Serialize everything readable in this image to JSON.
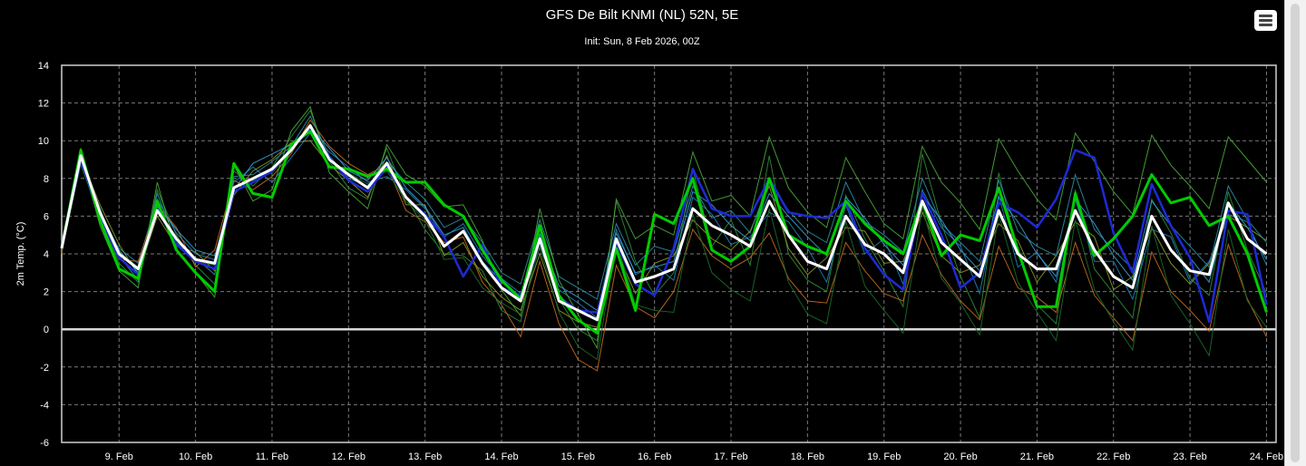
{
  "chart_data": {
    "type": "line",
    "title": "GFS De Bilt KNMI (NL) 52N, 5E",
    "subtitle": "Init: Sun, 8 Feb 2026, 00Z",
    "ylabel": "2m Temp. (°C)",
    "xlabel": "",
    "ylim": [
      -6,
      14
    ],
    "yticks": [
      14,
      12,
      10,
      8,
      6,
      4,
      2,
      0,
      -2,
      -4,
      -6
    ],
    "xlim": [
      8.25,
      24.125
    ],
    "xticks": [
      {
        "day": 9,
        "label": "9. Feb"
      },
      {
        "day": 10,
        "label": "10. Feb"
      },
      {
        "day": 11,
        "label": "11. Feb"
      },
      {
        "day": 12,
        "label": "12. Feb"
      },
      {
        "day": 13,
        "label": "13. Feb"
      },
      {
        "day": 14,
        "label": "14. Feb"
      },
      {
        "day": 15,
        "label": "15. Feb"
      },
      {
        "day": 16,
        "label": "16. Feb"
      },
      {
        "day": 17,
        "label": "17. Feb"
      },
      {
        "day": 18,
        "label": "18. Feb"
      },
      {
        "day": 19,
        "label": "19. Feb"
      },
      {
        "day": 20,
        "label": "20. Feb"
      },
      {
        "day": 21,
        "label": "21. Feb"
      },
      {
        "day": 22,
        "label": "22. Feb"
      },
      {
        "day": 23,
        "label": "23. Feb"
      },
      {
        "day": 24,
        "label": "24. Feb"
      }
    ],
    "grid": true,
    "zero_line": true,
    "x_step_hours": 6,
    "x_start_day": 8.25,
    "main_series": [
      {
        "role": "ensemble-mean",
        "color": "#ffffff",
        "width": 3,
        "values": [
          4.3,
          9.2,
          6.2,
          4.0,
          3.2,
          6.3,
          4.8,
          3.7,
          3.5,
          7.5,
          8.0,
          8.5,
          9.5,
          10.8,
          9.0,
          8.2,
          7.5,
          8.8,
          7.0,
          6.0,
          4.4,
          5.2,
          3.5,
          2.2,
          1.5,
          4.8,
          1.5,
          1.0,
          0.5,
          4.8,
          2.5,
          2.8,
          3.2,
          6.4,
          5.5,
          5.0,
          4.4,
          6.8,
          5.0,
          3.6,
          3.2,
          6.0,
          4.5,
          4.0,
          3.0,
          6.8,
          4.6,
          3.7,
          2.8,
          6.3,
          4.0,
          3.2,
          3.2,
          6.3,
          4.2,
          2.8,
          2.2,
          6.0,
          4.2,
          3.1,
          2.9,
          6.7,
          4.8,
          4.0
        ]
      },
      {
        "role": "control-run",
        "color": "#00cc00",
        "width": 3,
        "values": [
          4.3,
          9.5,
          5.8,
          3.2,
          2.7,
          6.8,
          4.2,
          3.0,
          2.0,
          8.8,
          7.2,
          7.0,
          9.8,
          10.5,
          8.6,
          8.5,
          8.1,
          8.5,
          7.8,
          7.8,
          6.6,
          6.0,
          4.2,
          2.6,
          1.6,
          5.5,
          1.8,
          0.5,
          -0.2,
          4.3,
          1.0,
          6.1,
          5.6,
          8.0,
          4.2,
          3.6,
          4.4,
          8.0,
          5.0,
          4.4,
          4.0,
          6.8,
          5.6,
          4.7,
          4.0,
          6.8,
          3.9,
          5.0,
          4.7,
          7.5,
          4.2,
          1.2,
          1.2,
          7.2,
          3.9,
          4.8,
          6.0,
          8.2,
          6.7,
          7.0,
          5.5,
          6.0,
          4.0,
          0.9
        ]
      },
      {
        "role": "operational-run",
        "color": "#1e2ad6",
        "width": 2.5,
        "values": [
          4.4,
          9.0,
          6.0,
          3.8,
          2.9,
          6.4,
          4.5,
          3.6,
          3.2,
          7.3,
          7.8,
          8.4,
          9.6,
          10.6,
          9.1,
          7.9,
          7.3,
          8.6,
          7.0,
          6.1,
          4.9,
          2.8,
          4.5,
          2.2,
          1.8,
          4.7,
          1.7,
          1.0,
          0.9,
          4.6,
          2.4,
          1.8,
          4.3,
          8.5,
          6.4,
          6.0,
          6.0,
          8.0,
          6.2,
          6.0,
          5.9,
          6.8,
          4.3,
          2.9,
          2.1,
          7.2,
          5.0,
          2.2,
          3.0,
          6.7,
          6.2,
          5.4,
          6.9,
          9.5,
          9.1,
          5.1,
          3.0,
          7.7,
          5.5,
          3.8,
          0.4,
          6.3,
          6.1,
          1.3
        ]
      }
    ],
    "members": [
      {
        "color": "#2f8c3a",
        "values": [
          4.5,
          9.4,
          6.1,
          3.5,
          2.5,
          7.4,
          5.0,
          3.4,
          2.4,
          8.4,
          7.6,
          8.6,
          10.2,
          11.6,
          8.9,
          7.5,
          6.9,
          9.6,
          7.0,
          5.3,
          4.0,
          3.9,
          3.1,
          1.0,
          0.4,
          5.1,
          1.6,
          0.0,
          -0.6,
          6.8,
          3.6,
          1.8,
          3.0,
          8.5,
          4.4,
          5.8,
          3.4,
          9.2,
          4.0,
          2.6,
          2.0,
          7.1,
          4.8,
          3.1,
          1.2,
          9.3,
          5.6,
          2.8,
          0.6,
          8.3,
          4.0,
          1.3,
          0.3,
          7.4,
          3.2,
          1.9,
          0.6,
          6.9,
          5.1,
          2.7,
          1.8,
          7.3,
          4.2,
          1.9
        ]
      },
      {
        "color": "#1e7fbf",
        "values": [
          4.1,
          8.9,
          5.7,
          4.3,
          3.5,
          6.9,
          5.1,
          4.0,
          3.7,
          7.8,
          8.6,
          7.8,
          9.1,
          10.4,
          9.4,
          8.6,
          7.8,
          8.1,
          7.4,
          6.4,
          4.9,
          5.6,
          3.9,
          2.7,
          1.9,
          4.3,
          2.1,
          1.4,
          0.6,
          5.3,
          2.9,
          3.4,
          2.6,
          7.0,
          6.1,
          4.5,
          4.9,
          6.2,
          5.7,
          4.3,
          2.5,
          6.6,
          4.0,
          4.8,
          2.4,
          7.4,
          5.4,
          4.4,
          1.9,
          7.1,
          3.3,
          4.1,
          2.5,
          6.9,
          3.6,
          3.6,
          1.6,
          5.3,
          4.9,
          2.5,
          3.6,
          6.1,
          5.7,
          3.4
        ]
      },
      {
        "color": "#8a9a2a",
        "values": [
          4.6,
          9.1,
          6.6,
          4.5,
          2.9,
          6.0,
          4.4,
          4.1,
          3.1,
          7.1,
          8.4,
          9.0,
          9.9,
          10.0,
          8.7,
          7.9,
          7.0,
          9.2,
          6.6,
          6.6,
          3.9,
          4.6,
          2.8,
          1.7,
          1.0,
          4.0,
          1.0,
          0.4,
          0.1,
          4.2,
          1.9,
          3.5,
          3.9,
          5.8,
          4.8,
          4.2,
          5.2,
          7.6,
          4.3,
          2.9,
          3.8,
          5.4,
          5.2,
          3.5,
          3.6,
          6.2,
          3.9,
          3.0,
          3.4,
          5.6,
          4.7,
          2.5,
          3.9,
          5.7,
          4.9,
          2.1,
          2.8,
          5.4,
          3.5,
          2.4,
          3.5,
          6.0,
          5.4,
          4.7
        ]
      },
      {
        "color": "#c46a1e",
        "values": [
          4.0,
          9.6,
          5.9,
          3.7,
          3.6,
          6.6,
          5.4,
          3.3,
          4.2,
          7.9,
          7.4,
          8.1,
          9.3,
          11.1,
          9.7,
          8.8,
          8.2,
          8.7,
          6.3,
          5.7,
          4.6,
          4.9,
          2.5,
          1.3,
          -0.4,
          3.6,
          0.3,
          -1.6,
          -2.2,
          3.4,
          1.2,
          0.6,
          2.0,
          5.3,
          3.9,
          3.2,
          3.8,
          5.1,
          2.7,
          1.5,
          1.4,
          4.6,
          3.1,
          1.9,
          1.5,
          5.0,
          2.9,
          1.5,
          0.5,
          4.4,
          2.2,
          1.7,
          0.9,
          4.6,
          1.8,
          0.6,
          -0.6,
          4.1,
          2.0,
          1.0,
          -0.1,
          4.5,
          1.6,
          -0.4
        ]
      },
      {
        "color": "#2b8fa3",
        "values": [
          4.4,
          9.0,
          6.4,
          3.9,
          2.6,
          7.2,
          4.6,
          3.8,
          2.9,
          8.1,
          8.2,
          8.9,
          9.7,
          11.3,
          9.2,
          8.0,
          7.6,
          8.9,
          7.8,
          6.9,
          5.4,
          5.9,
          4.6,
          3.0,
          2.4,
          5.8,
          2.8,
          2.2,
          1.6,
          5.6,
          3.4,
          4.4,
          4.1,
          7.6,
          5.9,
          6.3,
          5.1,
          7.9,
          6.3,
          5.2,
          4.6,
          7.8,
          5.7,
          5.0,
          4.1,
          8.0,
          5.6,
          4.6,
          3.6,
          7.9,
          5.2,
          4.4,
          3.9,
          8.2,
          5.3,
          4.2,
          3.2,
          7.7,
          5.5,
          4.4,
          3.3,
          7.6,
          5.8,
          4.6
        ]
      },
      {
        "color": "#4aa83a",
        "values": [
          4.2,
          9.3,
          5.5,
          3.1,
          2.2,
          7.8,
          4.2,
          3.0,
          1.7,
          8.7,
          6.8,
          7.4,
          10.5,
          11.8,
          8.3,
          7.3,
          6.4,
          9.8,
          8.2,
          7.6,
          6.5,
          6.6,
          4.7,
          2.1,
          0.7,
          6.4,
          2.6,
          0.8,
          -1.0,
          6.9,
          4.8,
          5.5,
          5.0,
          9.4,
          6.8,
          7.1,
          6.0,
          10.2,
          7.5,
          6.2,
          5.4,
          9.1,
          7.3,
          5.6,
          4.8,
          9.7,
          7.8,
          6.7,
          5.3,
          10.1,
          8.4,
          6.9,
          5.8,
          10.4,
          8.9,
          7.3,
          6.1,
          10.3,
          8.7,
          7.6,
          6.4,
          10.2,
          9.0,
          7.8
        ]
      },
      {
        "color": "#1b6b2a",
        "values": [
          4.3,
          8.7,
          6.0,
          4.1,
          3.3,
          6.2,
          4.9,
          3.6,
          3.4,
          7.6,
          7.9,
          8.3,
          9.4,
          10.9,
          9.0,
          8.3,
          7.7,
          8.4,
          6.8,
          5.8,
          3.7,
          3.8,
          2.2,
          1.4,
          0.8,
          4.4,
          0.9,
          -0.9,
          -1.6,
          4.7,
          1.3,
          1.0,
          0.9,
          6.1,
          3.0,
          2.1,
          1.5,
          6.4,
          2.5,
          0.8,
          0.3,
          5.7,
          2.3,
          1.0,
          -0.2,
          6.5,
          2.7,
          1.4,
          -0.3,
          6.1,
          2.5,
          0.9,
          -0.6,
          5.8,
          2.1,
          0.4,
          -1.1,
          5.5,
          1.8,
          0.3,
          -1.4,
          5.3,
          1.5,
          0.1
        ]
      },
      {
        "color": "#3a9fd0",
        "values": [
          4.5,
          9.2,
          6.3,
          4.2,
          3.0,
          6.5,
          5.3,
          4.2,
          3.9,
          7.4,
          8.8,
          9.3,
          9.8,
          10.7,
          9.6,
          8.4,
          7.9,
          9.1,
          7.5,
          6.5,
          5.0,
          5.4,
          3.6,
          2.5,
          1.7,
          5.0,
          2.3,
          1.7,
          1.0,
          5.1,
          3.0,
          3.3,
          3.6,
          7.3,
          6.6,
          5.5,
          4.7,
          7.2,
          6.0,
          4.9,
          3.9,
          7.0,
          5.9,
          4.5,
          3.4,
          7.1,
          5.8,
          4.2,
          3.1,
          7.0,
          5.7,
          4.0,
          2.8,
          6.9,
          5.6,
          3.9,
          2.6,
          6.8,
          5.5,
          3.8,
          2.5,
          6.7,
          5.4,
          3.7
        ]
      }
    ]
  }
}
